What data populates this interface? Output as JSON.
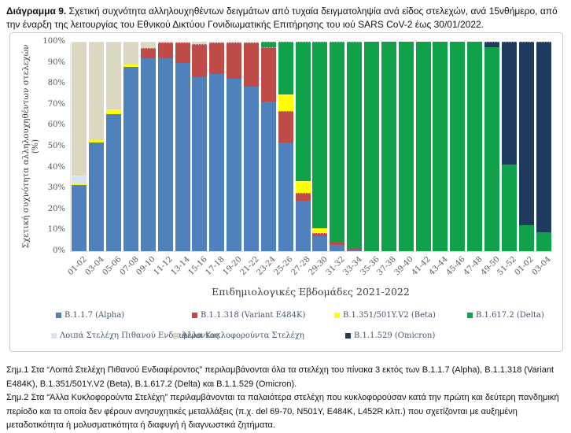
{
  "title": {
    "label": "Διάγραμμα 9.",
    "text": " Σχετική συχνότητα αλληλουχηθέντων δειγμάτων από τυχαία δειγματοληψία ανά είδος στελεχών, ανά 15νθήμερο, από την έναρξη της λειτουργίας του Εθνικού Δικτύου Γονιδιωματικής Επιτήρησης του ιού SARS CoV-2 έως 30/01/2022."
  },
  "chart_data": {
    "type": "bar",
    "stacked": true,
    "xlabel": "Επιδημιολογικές Εβδομάδες 2021-2022",
    "ylabel": "Σχετική συχνότητα αλληλουχηθέντων στελεχών (%)",
    "ylim": [
      0,
      100
    ],
    "ytick_step": 10,
    "grid": false,
    "legend_position": "bottom",
    "categories": [
      "01-02",
      "03-04",
      "05-06",
      "07-08",
      "09-10",
      "11-12",
      "13-14",
      "15-16",
      "17-18",
      "19-20",
      "21-22",
      "23-24",
      "25-26",
      "27-28",
      "29-30",
      "31-32",
      "33-34",
      "35-36",
      "37-38",
      "39-40",
      "41-42",
      "43-44",
      "45-46",
      "47-48",
      "49-50",
      "51-52",
      "01-02",
      "03-04"
    ],
    "series": [
      {
        "name": "B.1.1.7 (Alpha)",
        "color": "#4F81BD",
        "values": [
          31.5,
          52,
          65.5,
          88,
          92,
          92,
          90,
          83,
          84.5,
          82.5,
          78.5,
          71.5,
          52,
          24,
          7,
          3,
          0.5,
          0,
          0,
          0,
          0,
          0,
          0,
          0,
          0,
          0,
          0,
          0
        ]
      },
      {
        "name": "B.1.1.318 (Variant E484K)",
        "color": "#BE4B48",
        "values": [
          0,
          0,
          0,
          0,
          5,
          7.5,
          9.5,
          16,
          15,
          17,
          21,
          26,
          15,
          4,
          1.5,
          1,
          0.5,
          0,
          0,
          0,
          0,
          0,
          0,
          0,
          0,
          0,
          0,
          0
        ]
      },
      {
        "name": "B.1.351/501Y.V2 (Beta)",
        "color": "#FFFF00",
        "values": [
          0.5,
          1,
          2,
          1,
          0,
          0,
          0,
          0,
          0.5,
          0,
          0.5,
          0,
          8,
          5.5,
          2.5,
          0,
          0,
          0,
          0,
          0,
          0,
          0,
          0,
          0,
          0,
          0,
          0,
          0
        ]
      },
      {
        "name": "B.1.617.2 (Delta)",
        "color": "#12A14B",
        "values": [
          0,
          0,
          0,
          0,
          0,
          0,
          0,
          0,
          0,
          0,
          0,
          2.5,
          25,
          66.5,
          89,
          96,
          99,
          100,
          100,
          100,
          100,
          100,
          100,
          100,
          97.5,
          41.5,
          12.5,
          9
        ]
      },
      {
        "name": "Λοιπά Στελέχη Πιθανού Ενδιαφέροντος",
        "color": "#D9E2F0",
        "values": [
          4,
          0,
          0,
          0,
          0,
          0,
          0,
          0,
          0,
          0,
          0,
          0,
          0,
          0,
          0,
          0,
          0,
          0,
          0,
          0,
          0,
          0,
          0,
          0,
          0,
          0,
          0,
          0
        ]
      },
      {
        "name": "Άλλα Κυκλοφορούντα Στελέχη",
        "color": "#DBD7C2",
        "values": [
          64,
          47,
          32.5,
          11,
          3,
          0.5,
          0.5,
          1,
          0,
          0.5,
          0,
          0,
          0,
          0,
          0,
          0,
          0,
          0,
          0,
          0,
          0,
          0,
          0,
          0,
          0,
          0,
          0,
          0
        ]
      },
      {
        "name": "B.1.1.529 (Omicron)",
        "color": "#1F3A5F",
        "values": [
          0,
          0,
          0,
          0,
          0,
          0,
          0,
          0,
          0,
          0,
          0,
          0,
          0,
          0,
          0,
          0,
          0,
          0,
          0,
          0,
          0,
          0,
          0,
          0,
          2.5,
          58.5,
          87.5,
          91
        ]
      }
    ]
  },
  "notes": [
    "Σημ.1 Στα “Λοιπά Στελέχη Πιθανού Ενδιαφέροντος” περιλαμβάνονται όλα τα στελέχη του πίνακα 3 εκτός των B.1.1.7 (Alpha), B.1.1.318 (Variant E484K), B.1.351/501Y.V2 (Beta), B.1.617.2 (Delta) και B.1.1.529 (Omicron).",
    "Σημ.2 Στα “Άλλα Κυκλοφορούντα Στελέχη” περιλαμβάνονται τα παλαιότερα στελέχη που κυκλοφορούσαν κατά την πρώτη και δεύτερη πανδημική περίοδο και τα οποία δεν φέρουν ανησυχητικές μεταλλάξεις (π.χ. del 69-70, N501Y, E484K, L452R κλπ.) που σχετίζονται με αυξημένη μεταδοτικότητα ή μολυσματικότητα ή διαφυγή ή διαγνωστικά ζητήματα."
  ]
}
